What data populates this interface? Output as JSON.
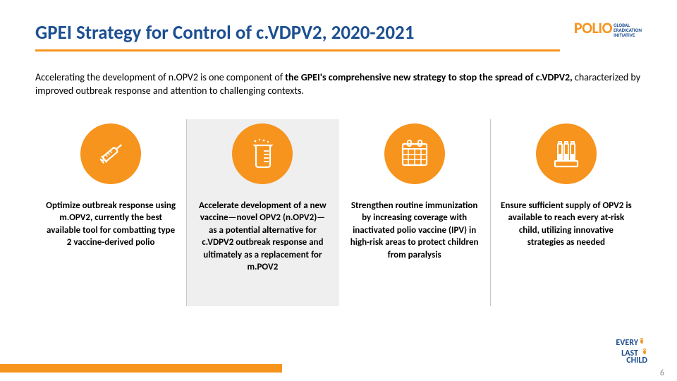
{
  "header": {
    "title": "GPEI Strategy for Control of c.VDPV2, 2020-2021",
    "logo_polio": "POLIO",
    "logo_gpei_l1": "GLOBAL",
    "logo_gpei_l2": "ERADICATION",
    "logo_gpei_l3": "INITIATIVE"
  },
  "subtext": {
    "pre": "Accelerating the development of n.OPV2 is one component of ",
    "bold": "the GPEI's comprehensive new strategy to stop the spread of c.VDPV2,",
    "post": " characterized by improved outbreak response and attention to challenging contexts."
  },
  "pillars": [
    {
      "icon": "syringe",
      "highlight": false,
      "text": "Optimize outbreak response using m.OPV2, currently the best available tool for combatting type 2 vaccine-derived polio"
    },
    {
      "icon": "beaker",
      "highlight": true,
      "text": "Accelerate development of a new vaccine—novel OPV2 (n.OPV2)—as a potential alternative for c.VDPV2 outbreak response and ultimately as a replacement for m.POV2"
    },
    {
      "icon": "calendar",
      "highlight": false,
      "text": "Strengthen routine immunization by increasing coverage with inactivated polio vaccine (IPV) in high-risk areas to protect children from paralysis"
    },
    {
      "icon": "vials",
      "highlight": false,
      "text": "Ensure sufficient supply of OPV2 is available to reach every at-risk child, utilizing innovative strategies as needed"
    }
  ],
  "footer": {
    "page_num": "6",
    "every": "EVERY",
    "last": "LAST",
    "child": "CHILD"
  },
  "colors": {
    "orange": "#f7941d",
    "blue": "#1d4f91",
    "icon_fg": "#ffffff",
    "highlight_bg": "#efefef",
    "divider": "#c8c8c8"
  }
}
